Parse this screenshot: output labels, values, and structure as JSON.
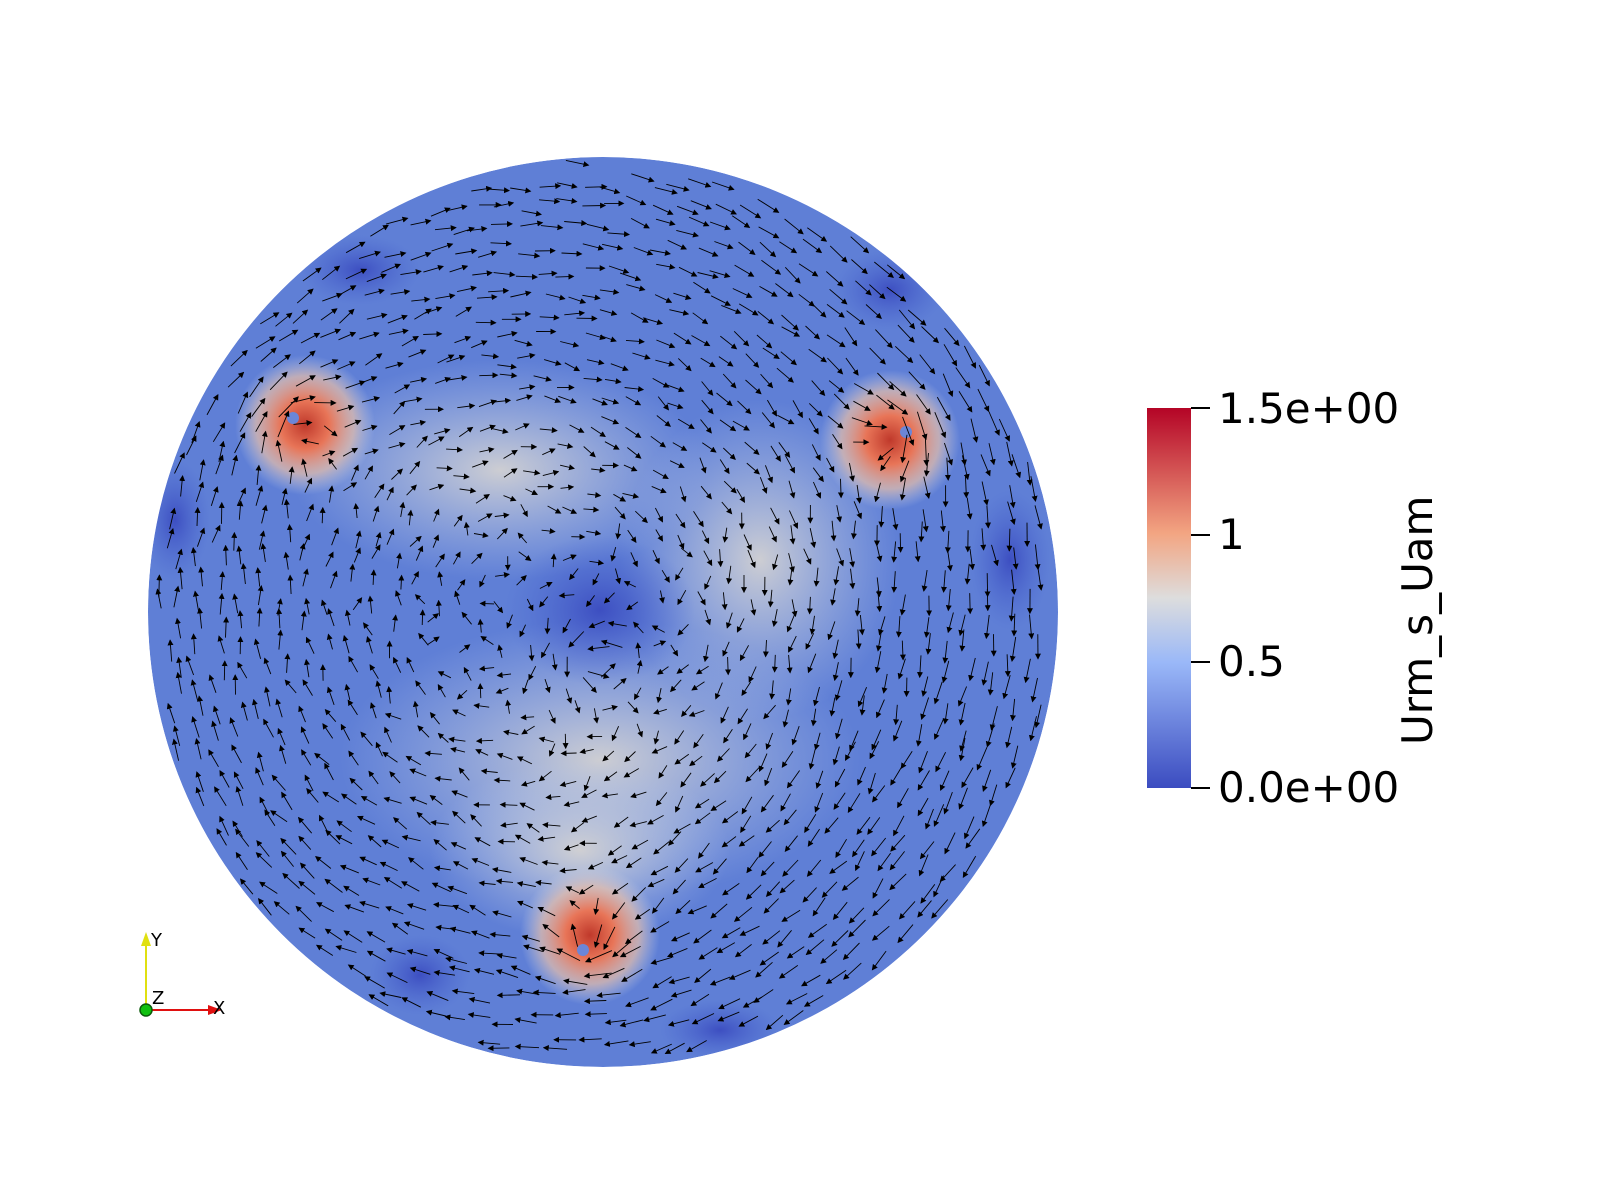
{
  "render": {
    "field_name": "Urm_s_Uam",
    "colormap": "Cool to Warm",
    "colors": {
      "low": "#3b4cc0",
      "mid": "#dddddd",
      "high": "#b40426",
      "arrow": "#000000",
      "background": "#ffffff"
    }
  },
  "colorbar": {
    "title": "Urm_s_Uam",
    "range": [
      0.0,
      1.5
    ],
    "labels": [
      "1.5e+00",
      "1",
      "0.5",
      "0.0e+00"
    ],
    "label_values": [
      1.5,
      1.0,
      0.5,
      0.0
    ]
  },
  "axes_widget": {
    "x_label": "X",
    "y_label": "Y",
    "z_label": "Z",
    "x_color": "#e01010",
    "y_color": "#e0e010",
    "z_color": "#10c010"
  },
  "field": {
    "vortex_cores": [
      {
        "name": "upper-left-vortex",
        "peak_value": 1.5
      },
      {
        "name": "upper-right-vortex",
        "peak_value": 1.5
      },
      {
        "name": "bottom-vortex",
        "peak_value": 1.5
      }
    ]
  }
}
